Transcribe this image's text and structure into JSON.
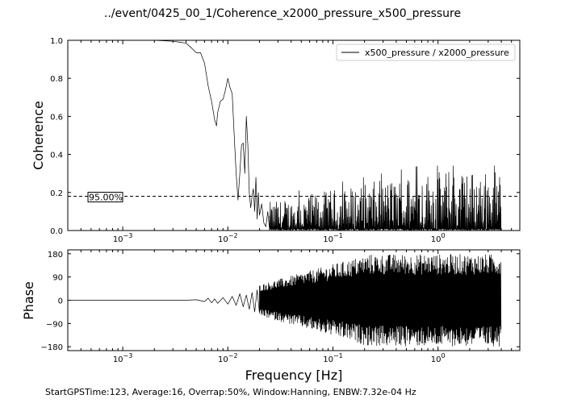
{
  "figure": {
    "title": "../event/0425_00_1/Coherence_x2000_pressure_x500_pressure",
    "footer": "StartGPSTime:123, Average:16, Overrap:50%, Window:Hanning, ENBW:7.32e-04 Hz"
  },
  "chart_data": [
    {
      "type": "line",
      "panel": "coherence",
      "ylabel": "Coherence",
      "xscale": "log",
      "xlim": [
        0.0003,
        6
      ],
      "ylim": [
        0,
        1
      ],
      "yticks": [
        "0.0",
        "0.2",
        "0.4",
        "0.6",
        "0.8",
        "1.0"
      ],
      "xticks": [
        {
          "base": "10",
          "exp": "−3"
        },
        {
          "base": "10",
          "exp": "−2"
        },
        {
          "base": "10",
          "exp": "−1"
        },
        {
          "base": "10",
          "exp": "0"
        }
      ],
      "legend": {
        "placement": "top-right",
        "entry": "x500_pressure / x2000_pressure"
      },
      "threshold": {
        "value": 0.18,
        "label": "95.00%"
      },
      "series": [
        {
          "name": "x500_pressure / x2000_pressure",
          "color": "#000000",
          "x": [
            0.0003,
            0.001,
            0.002,
            0.003,
            0.0035,
            0.004,
            0.0045,
            0.005,
            0.0055,
            0.006,
            0.0065,
            0.007,
            0.0075,
            0.0078,
            0.008,
            0.0085,
            0.009,
            0.0095,
            0.01,
            0.0105,
            0.011,
            0.0115,
            0.012,
            0.0125,
            0.013,
            0.0135,
            0.014,
            0.0145,
            0.015,
            0.0155,
            0.016,
            0.0165,
            0.017,
            0.0175,
            0.018,
            0.0185,
            0.019,
            0.0195,
            0.02,
            0.021,
            0.022,
            0.023,
            0.024,
            0.025
          ],
          "y": [
            1.0,
            1.0,
            1.0,
            0.995,
            0.99,
            0.985,
            0.96,
            0.935,
            0.935,
            0.88,
            0.76,
            0.68,
            0.58,
            0.55,
            0.62,
            0.68,
            0.69,
            0.74,
            0.8,
            0.75,
            0.72,
            0.5,
            0.3,
            0.16,
            0.3,
            0.45,
            0.46,
            0.3,
            0.6,
            0.45,
            0.2,
            0.12,
            0.18,
            0.22,
            0.1,
            0.28,
            0.06,
            0.2,
            0.08,
            0.14,
            0.04,
            0.02,
            0.1,
            0.0
          ],
          "noise": {
            "x_from": 0.025,
            "x_to": 4.0,
            "floor": 0.0,
            "peak_min": 0.15,
            "peak_max": 0.32
          }
        }
      ]
    },
    {
      "type": "line",
      "panel": "phase",
      "ylabel": "Phase",
      "xlabel": "Frequency [Hz]",
      "xscale": "log",
      "xlim": [
        0.0003,
        6
      ],
      "ylim": [
        -195,
        195
      ],
      "yticks": [
        "−180",
        "−90",
        "0",
        "90",
        "180"
      ],
      "ytick_values": [
        -180,
        -90,
        0,
        90,
        180
      ],
      "xticks": [
        {
          "base": "10",
          "exp": "−3"
        },
        {
          "base": "10",
          "exp": "−2"
        },
        {
          "base": "10",
          "exp": "−1"
        },
        {
          "base": "10",
          "exp": "0"
        }
      ],
      "series": [
        {
          "name": "x500_pressure / x2000_pressure",
          "color": "#000000",
          "x": [
            0.0003,
            0.004,
            0.005,
            0.006,
            0.0065,
            0.007,
            0.0075,
            0.008,
            0.009,
            0.01,
            0.011,
            0.012,
            0.013,
            0.014,
            0.015,
            0.016,
            0.017,
            0.018,
            0.019,
            0.02
          ],
          "y": [
            0,
            0,
            2,
            -5,
            8,
            -10,
            5,
            -12,
            10,
            -15,
            15,
            -20,
            25,
            -25,
            20,
            -35,
            30,
            -45,
            40,
            -50
          ],
          "noise": {
            "x_from": 0.02,
            "x_to": 4.0,
            "range_start": 60,
            "range_end": 178
          }
        }
      ]
    }
  ]
}
